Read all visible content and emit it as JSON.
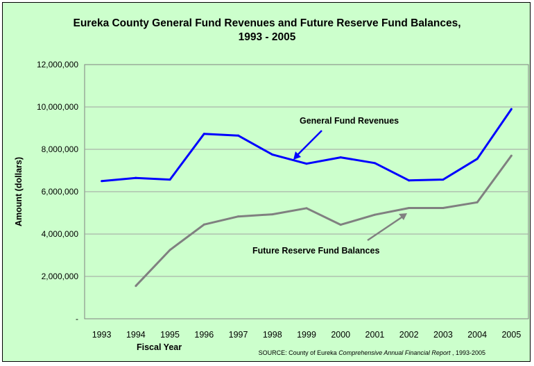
{
  "chart_data": {
    "type": "line",
    "title_line1": "Eureka County General Fund Revenues and Future Reserve Fund Balances,",
    "title_line2": "1993 - 2005",
    "xlabel": "Fiscal Year",
    "ylabel": "Amount (dollars)",
    "ylim": [
      0,
      12000000
    ],
    "y_ticks": [
      0,
      2000000,
      4000000,
      6000000,
      8000000,
      10000000,
      12000000
    ],
    "y_tick_labels": [
      "-",
      "2,000,000",
      "4,000,000",
      "6,000,000",
      "8,000,000",
      "10,000,000",
      "12,000,000"
    ],
    "x": [
      "1993",
      "1994",
      "1995",
      "1996",
      "1997",
      "1998",
      "1999",
      "2000",
      "2001",
      "2002",
      "2003",
      "2004",
      "2005"
    ],
    "grid": true,
    "series": [
      {
        "name": "General Fund Revenues",
        "color": "#0000ff",
        "values": [
          6500000,
          6650000,
          6570000,
          8730000,
          8650000,
          7750000,
          7320000,
          7620000,
          7350000,
          6530000,
          6570000,
          7550000,
          9900000
        ]
      },
      {
        "name": "Future Reserve Fund Balances",
        "color": "#808080",
        "values": [
          null,
          1550000,
          3250000,
          4450000,
          4830000,
          4930000,
          5220000,
          4440000,
          4910000,
          5230000,
          5230000,
          5500000,
          7700000
        ]
      }
    ],
    "annotations": [
      {
        "text": "General Fund Revenues",
        "series": 0,
        "points_to": "1998-1999"
      },
      {
        "text": "Future Reserve Fund Balances",
        "series": 1,
        "points_to": "2002"
      }
    ],
    "source": {
      "prefix": "SOURCE: County of Eureka ",
      "italic": "Comprehensive Annual Financial Report",
      "suffix": " , 1993-2005"
    }
  }
}
